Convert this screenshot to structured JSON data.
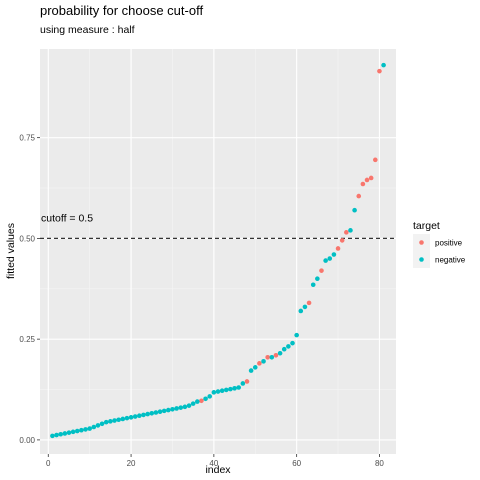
{
  "chart_data": {
    "type": "scatter",
    "title": "probability for choose cut-off",
    "subtitle": "using measure : half",
    "xlabel": "index",
    "ylabel": "fitted values",
    "xlim": [
      -2,
      84
    ],
    "ylim": [
      -0.035,
      0.97
    ],
    "xticks": [
      0,
      20,
      40,
      60,
      80
    ],
    "xtick_labels": [
      "0",
      "20",
      "40",
      "60",
      "80"
    ],
    "yticks": [
      0.0,
      0.25,
      0.5,
      0.75
    ],
    "ytick_labels": [
      "0.00",
      "0.25",
      "0.50",
      "0.75"
    ],
    "cutoff": {
      "value": 0.5,
      "label": "cutoff = 0.5",
      "style": "dashed"
    },
    "grid": true,
    "legend": {
      "title": "target",
      "position": "right"
    },
    "series": [
      {
        "name": "positive",
        "color": "#F8766D",
        "x": [
          37,
          48,
          51,
          53,
          55,
          63,
          66,
          70,
          71,
          72,
          75,
          76,
          77,
          78,
          79,
          80
        ],
        "y": [
          0.097,
          0.145,
          0.19,
          0.205,
          0.21,
          0.34,
          0.42,
          0.475,
          0.495,
          0.515,
          0.605,
          0.635,
          0.645,
          0.65,
          0.695,
          0.915
        ]
      },
      {
        "name": "negative",
        "color": "#00BFC4",
        "x": [
          1,
          2,
          3,
          4,
          5,
          6,
          7,
          8,
          9,
          10,
          11,
          12,
          13,
          14,
          15,
          16,
          17,
          18,
          19,
          20,
          21,
          22,
          23,
          24,
          25,
          26,
          27,
          28,
          29,
          30,
          31,
          32,
          33,
          34,
          35,
          36,
          38,
          39,
          40,
          41,
          42,
          43,
          44,
          45,
          46,
          47,
          49,
          50,
          52,
          54,
          56,
          57,
          58,
          59,
          60,
          61,
          62,
          64,
          65,
          67,
          68,
          69,
          73,
          74,
          81
        ],
        "y": [
          0.01,
          0.012,
          0.014,
          0.016,
          0.018,
          0.02,
          0.022,
          0.024,
          0.026,
          0.028,
          0.032,
          0.036,
          0.04,
          0.044,
          0.046,
          0.048,
          0.05,
          0.052,
          0.054,
          0.056,
          0.058,
          0.06,
          0.062,
          0.064,
          0.066,
          0.068,
          0.07,
          0.072,
          0.074,
          0.076,
          0.078,
          0.08,
          0.082,
          0.085,
          0.09,
          0.095,
          0.102,
          0.108,
          0.118,
          0.12,
          0.122,
          0.124,
          0.126,
          0.128,
          0.13,
          0.14,
          0.172,
          0.18,
          0.195,
          0.205,
          0.215,
          0.225,
          0.232,
          0.24,
          0.26,
          0.32,
          0.33,
          0.385,
          0.4,
          0.445,
          0.45,
          0.46,
          0.52,
          0.57,
          0.93
        ]
      }
    ]
  }
}
